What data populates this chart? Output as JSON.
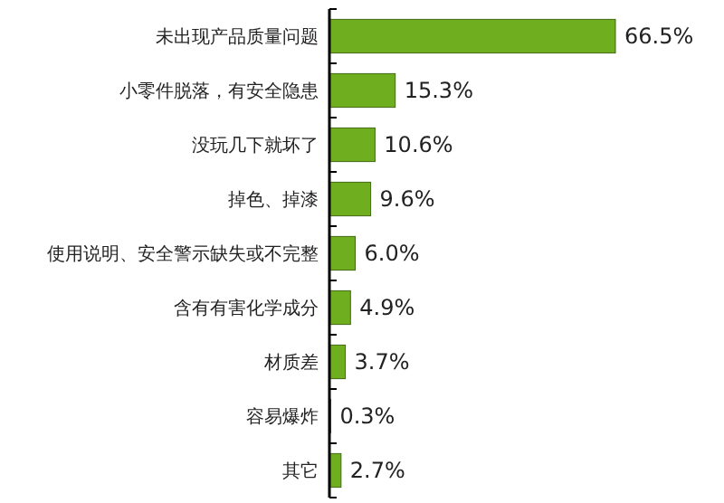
{
  "chart_data": {
    "type": "bar",
    "orientation": "horizontal",
    "categories": [
      "未出现产品质量问题",
      "小零件脱落，有安全隐患",
      "没玩几下就坏了",
      "掉色、掉漆",
      "使用说明、安全警示缺失或不完整",
      "含有有害化学成分",
      "材质差",
      "容易爆炸",
      "其它"
    ],
    "values": [
      66.5,
      15.3,
      10.6,
      9.6,
      6.0,
      4.9,
      3.7,
      0.3,
      2.7
    ],
    "value_labels": [
      "66.5%",
      "15.3%",
      "10.6%",
      "9.6%",
      "6.0%",
      "4.9%",
      "3.7%",
      "0.3%",
      "2.7%"
    ],
    "color": "#6fae1e"
  }
}
